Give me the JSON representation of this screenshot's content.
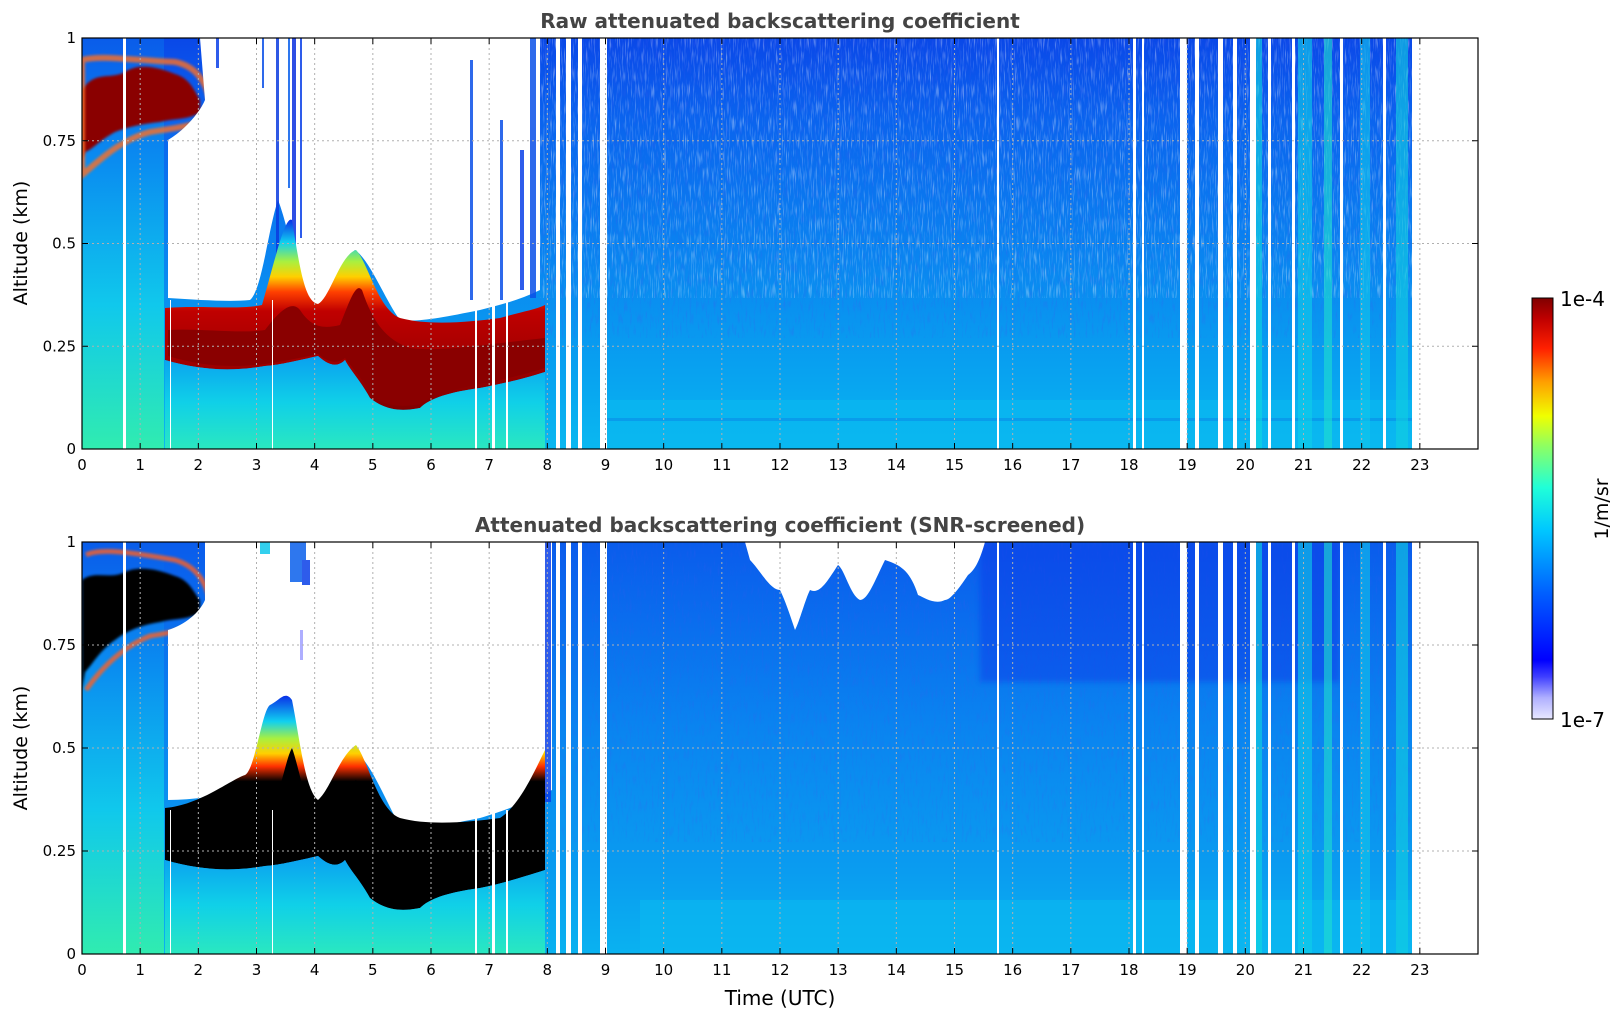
{
  "chart_data": [
    {
      "type": "heatmap",
      "title": "Raw attenuated backscattering coefficient",
      "xlabel": "",
      "ylabel": "Altitude (km)",
      "xlim": [
        0,
        24
      ],
      "ylim": [
        0,
        1
      ],
      "x_ticks": [
        "0",
        "1",
        "2",
        "3",
        "4",
        "5",
        "6",
        "7",
        "8",
        "9",
        "10",
        "11",
        "12",
        "13",
        "14",
        "15",
        "16",
        "17",
        "18",
        "19",
        "20",
        "21",
        "22",
        "23"
      ],
      "y_ticks": [
        "0",
        "0.25",
        "0.5",
        "0.75",
        "1"
      ],
      "grid": true,
      "features": [
        {
          "label": "fog/low cloud top layer",
          "start_time": 1.4,
          "end_time": 8.15,
          "base_altitude": 0.17,
          "peak_altitude": 0.23
        },
        {
          "label": "early morning cloud",
          "start_time": 0.0,
          "end_time": 2.0,
          "altitude_range": [
            0.7,
            0.9
          ]
        },
        {
          "label": "data gaps",
          "times": [
            0.75,
            8.3,
            8.55,
            9.05,
            15.85,
            18.2,
            19.0,
            19.4,
            20.0,
            21.8,
            22.6
          ]
        }
      ]
    },
    {
      "type": "heatmap",
      "title": "Attenuated backscattering coefficient (SNR-screened)",
      "xlabel": "Time (UTC)",
      "ylabel": "Altitude (km)",
      "xlim": [
        0,
        24
      ],
      "ylim": [
        0,
        1
      ],
      "x_ticks": [
        "0",
        "1",
        "2",
        "3",
        "4",
        "5",
        "6",
        "7",
        "8",
        "9",
        "10",
        "11",
        "12",
        "13",
        "14",
        "15",
        "16",
        "17",
        "18",
        "19",
        "20",
        "21",
        "22",
        "23"
      ],
      "y_ticks": [
        "0",
        "0.25",
        "0.5",
        "0.75",
        "1"
      ],
      "grid": true,
      "features": [
        {
          "label": "saturated cloud layer (black)",
          "start_time": 1.4,
          "end_time": 8.15,
          "base_altitude": 0.17,
          "peak_altitude": 0.23
        },
        {
          "label": "screened-out region (white)",
          "start_time": 11.5,
          "end_time": 15.3,
          "altitude_range": [
            0.8,
            1.0
          ]
        }
      ]
    }
  ],
  "colorbar": {
    "max_label": "1e-4",
    "min_label": "1e-7",
    "unit_label": "1/m/sr",
    "scale": "log",
    "colormap": "jet"
  }
}
